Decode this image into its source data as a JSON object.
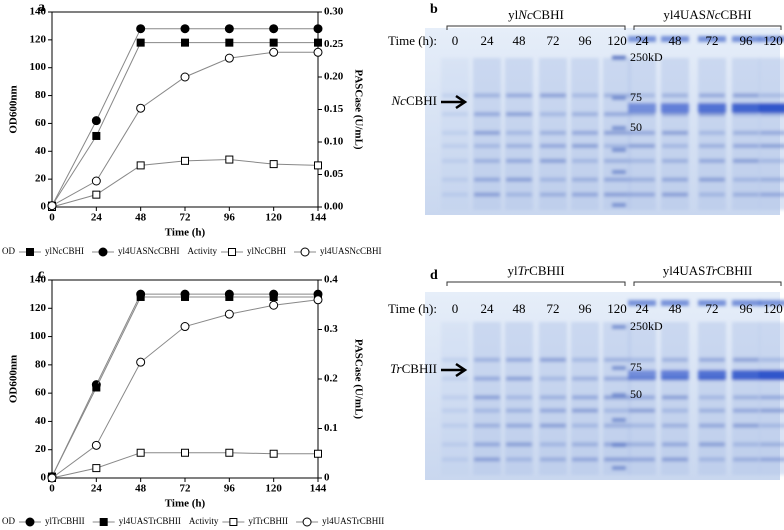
{
  "chart_data": [
    {
      "type": "line",
      "panel": "a",
      "xlabel": "Time (h)",
      "ylabel": "OD600nm",
      "y2label": "PASCase (U/mL)",
      "x": [
        0,
        24,
        48,
        72,
        96,
        120,
        144
      ],
      "xlim": [
        0,
        144
      ],
      "xticks": [
        0,
        24,
        48,
        72,
        96,
        120,
        144
      ],
      "ylim": [
        0,
        140
      ],
      "yticks": [
        0,
        20,
        40,
        60,
        80,
        100,
        120,
        140
      ],
      "y2lim": [
        0,
        0.3
      ],
      "y2ticks": [
        {
          "value": 0,
          "label": "0.00"
        },
        0.05,
        {
          "value": 0.1,
          "label": "0.10"
        },
        0.15,
        {
          "value": 0.2,
          "label": "0.20"
        },
        0.25,
        {
          "value": 0.3,
          "label": "0.30"
        }
      ],
      "legend_labels": [
        "OD",
        "Activity"
      ],
      "series": [
        {
          "name": "ylNcCBHI",
          "color": "#000000",
          "marker": "square",
          "filled": true,
          "values": [
            1,
            51,
            118,
            118,
            118,
            118,
            118
          ]
        },
        {
          "name": "yl4UASNcCBHI",
          "color": "#000000",
          "marker": "circle",
          "filled": true,
          "values": [
            1,
            62,
            128,
            128,
            128,
            128,
            128
          ]
        },
        {
          "name": "ylNcCBHI",
          "color": "#000000",
          "marker": "square",
          "filled": false,
          "axis": "y2",
          "values": [
            0,
            0.019,
            0.064,
            0.071,
            0.073,
            0.066,
            0.064
          ]
        },
        {
          "name": "yl4UASNcCBHI",
          "color": "#000000",
          "marker": "circle",
          "filled": false,
          "axis": "y2",
          "values": [
            0.002,
            0.04,
            0.152,
            0.2,
            0.229,
            0.238,
            0.238
          ]
        }
      ]
    },
    {
      "type": "line",
      "panel": "c",
      "xlabel": "Time (h)",
      "ylabel": "OD600nm",
      "y2label": "PASCase (U/mL)",
      "x": [
        0,
        24,
        48,
        72,
        96,
        120,
        144
      ],
      "xlim": [
        0,
        144
      ],
      "xticks": [
        0,
        24,
        48,
        72,
        96,
        120,
        144
      ],
      "ylim": [
        0,
        140
      ],
      "yticks": [
        0,
        20,
        40,
        60,
        80,
        100,
        120,
        140
      ],
      "y2lim": [
        0,
        0.4
      ],
      "y2ticks": [
        0,
        0.1,
        0.2,
        0.3,
        0.4
      ],
      "legend_labels": [
        "OD",
        "Activity"
      ],
      "series": [
        {
          "name": "ylTrCBHII",
          "color": "#000000",
          "marker": "circle",
          "filled": true,
          "values": [
            1,
            66,
            130,
            130,
            130,
            130,
            130
          ]
        },
        {
          "name": "yl4UASTrCBHII",
          "color": "#000000",
          "marker": "square",
          "filled": true,
          "values": [
            1,
            64,
            128,
            128,
            128,
            128,
            128
          ]
        },
        {
          "name": "ylTrCBHII",
          "color": "#000000",
          "marker": "square",
          "filled": false,
          "axis": "y2",
          "values": [
            0,
            0.02,
            0.051,
            0.051,
            0.051,
            0.049,
            0.049
          ]
        },
        {
          "name": "yl4UASTrCBHII",
          "color": "#000000",
          "marker": "circle",
          "filled": false,
          "axis": "y2",
          "values": [
            0,
            0.066,
            0.234,
            0.306,
            0.331,
            0.349,
            0.36
          ]
        }
      ]
    }
  ],
  "gels": [
    {
      "panel": "b",
      "time_label": "Time (h):",
      "markers": [
        "250kD",
        "75",
        "50"
      ],
      "arrow_parts": [
        "Nc",
        "CBHI"
      ],
      "groups": [
        {
          "parts": [
            "yl",
            "Nc",
            "CBHI"
          ],
          "lanes": [
            0,
            24,
            48,
            72,
            96,
            120
          ]
        },
        {
          "parts": [
            "yl4UAS",
            "Nc",
            "CBHI"
          ],
          "lanes": [
            24,
            48,
            72,
            96,
            120
          ]
        }
      ]
    },
    {
      "panel": "d",
      "time_label": "Time (h):",
      "markers": [
        "250kD",
        "75",
        "50"
      ],
      "arrow_parts": [
        "Tr",
        "CBHII"
      ],
      "groups": [
        {
          "parts": [
            "yl",
            "Tr",
            "CBHII"
          ],
          "lanes": [
            0,
            24,
            48,
            72,
            96,
            120
          ]
        },
        {
          "parts": [
            "yl4UAS",
            "Tr",
            "CBHII"
          ],
          "lanes": [
            24,
            48,
            72,
            96,
            120
          ]
        }
      ]
    }
  ]
}
